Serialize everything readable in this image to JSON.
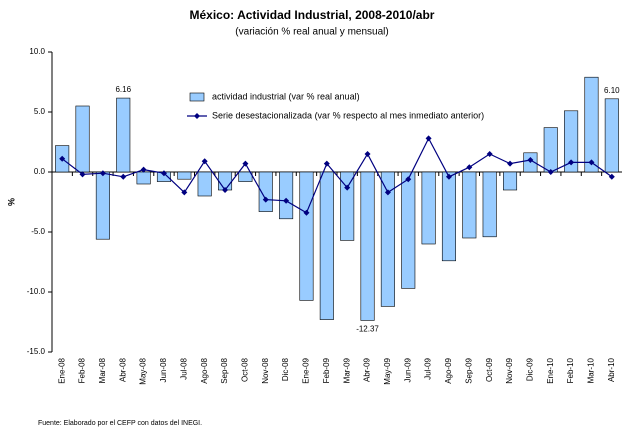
{
  "chart_data": {
    "type": "bar_line",
    "title": "México: Actividad Industrial, 2008-2010/abr",
    "subtitle": "(variación % real anual y mensual)",
    "y_label": "%",
    "source": "Fuente: Elaborado por el CEFP con datos del INEGI.",
    "categories": [
      "Ene-08",
      "Feb-08",
      "Mar-08",
      "Abr-08",
      "May-08",
      "Jun-08",
      "Jul-08",
      "Ago-08",
      "Sep-08",
      "Oct-08",
      "Nov-08",
      "Dic-08",
      "Ene-09",
      "Feb-09",
      "Mar-09",
      "Abr-09",
      "May-09",
      "Jun-09",
      "Jul-09",
      "Ago-09",
      "Sep-09",
      "Oct-09",
      "Nov-09",
      "Dic-09",
      "Ene-10",
      "Feb-10",
      "Mar-10",
      "Abr-10"
    ],
    "series": [
      {
        "name": "actividad industrial (var % real anual)",
        "kind": "bar",
        "color": "#99ccff",
        "values": [
          2.2,
          5.5,
          -5.6,
          6.16,
          -1.0,
          -0.8,
          -0.6,
          -2.0,
          -1.5,
          -0.8,
          -3.3,
          -3.9,
          -10.7,
          -12.3,
          -5.7,
          -12.37,
          -11.2,
          -9.7,
          -6.0,
          -7.4,
          -5.5,
          -5.4,
          -1.5,
          1.6,
          3.7,
          5.1,
          7.9,
          6.1
        ],
        "value_labels": [
          null,
          null,
          null,
          "6.16",
          null,
          null,
          null,
          null,
          null,
          null,
          null,
          null,
          null,
          null,
          null,
          "-12.37",
          null,
          null,
          null,
          null,
          null,
          null,
          null,
          null,
          null,
          null,
          null,
          "6.10"
        ]
      },
      {
        "name": "Serie desestacionalizada (var % respecto al mes inmediato anterior)",
        "kind": "line",
        "color": "#000080",
        "values": [
          1.1,
          -0.2,
          -0.1,
          -0.4,
          0.2,
          -0.1,
          -1.7,
          0.9,
          -1.5,
          0.7,
          -2.3,
          -2.4,
          -3.4,
          0.7,
          -1.3,
          1.5,
          -1.7,
          -0.6,
          2.8,
          -0.4,
          0.4,
          1.5,
          0.7,
          1.0,
          0.0,
          0.8,
          0.8,
          -0.4
        ]
      }
    ],
    "ylim": [
      -15,
      10
    ],
    "yticks": [
      {
        "value": -15,
        "label": "-15.0"
      },
      {
        "value": -10,
        "label": "-10.0"
      },
      {
        "value": -5,
        "label": "-5.0"
      },
      {
        "value": 0,
        "label": "0.0"
      },
      {
        "value": 5,
        "label": "5.0"
      },
      {
        "value": 10,
        "label": "10.0"
      }
    ],
    "legend": "top"
  }
}
